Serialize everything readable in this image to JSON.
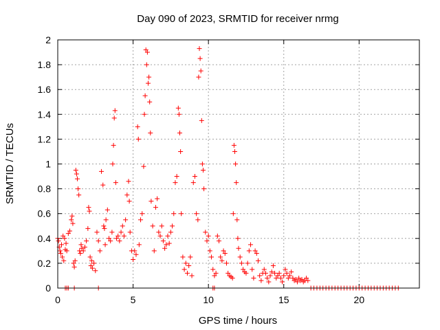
{
  "chart_data": {
    "type": "scatter",
    "title": "Day 090 of 2023, SRMTID for receiver nrmg",
    "xlabel": "GPS time / hours",
    "ylabel": "SRMTID / TECUs",
    "xlim": [
      0,
      24
    ],
    "ylim": [
      0,
      2
    ],
    "xticks": [
      0,
      5,
      10,
      15,
      20
    ],
    "xtick_labels": [
      "0",
      "5",
      "10",
      "15",
      "20"
    ],
    "yticks": [
      0,
      0.2,
      0.4,
      0.6,
      0.8,
      1,
      1.2,
      1.4,
      1.6,
      1.8,
      2
    ],
    "ytick_labels": [
      "0",
      "0.2",
      "0.4",
      "0.6",
      "0.8",
      "1",
      "1.2",
      "1.4",
      "1.6",
      "1.8",
      "2"
    ],
    "grid": true,
    "marker": "+",
    "marker_color": "#ff0000",
    "series": [
      {
        "name": "SRMTID",
        "points": [
          [
            0.0,
            0.4
          ],
          [
            0.05,
            0.38
          ],
          [
            0.1,
            0.33
          ],
          [
            0.15,
            0.3
          ],
          [
            0.2,
            0.28
          ],
          [
            0.25,
            0.35
          ],
          [
            0.3,
            0.25
          ],
          [
            0.35,
            0.42
          ],
          [
            0.4,
            0.22
          ],
          [
            0.45,
            0.4
          ],
          [
            0.5,
            0.31
          ],
          [
            0.55,
            0.36
          ],
          [
            0.6,
            0.3
          ],
          [
            0.7,
            0.44
          ],
          [
            0.8,
            0.46
          ],
          [
            0.9,
            0.55
          ],
          [
            0.95,
            0.58
          ],
          [
            1.0,
            0.52
          ],
          [
            1.05,
            0.2
          ],
          [
            1.1,
            0.17
          ],
          [
            1.15,
            0.22
          ],
          [
            1.2,
            0.95
          ],
          [
            1.25,
            0.92
          ],
          [
            1.3,
            0.88
          ],
          [
            1.35,
            0.8
          ],
          [
            1.4,
            0.75
          ],
          [
            1.45,
            0.3
          ],
          [
            1.5,
            0.28
          ],
          [
            1.55,
            0.35
          ],
          [
            1.6,
            0.32
          ],
          [
            1.7,
            0.3
          ],
          [
            1.8,
            0.33
          ],
          [
            1.9,
            0.38
          ],
          [
            2.0,
            0.48
          ],
          [
            2.05,
            0.65
          ],
          [
            2.1,
            0.62
          ],
          [
            2.15,
            0.25
          ],
          [
            2.2,
            0.18
          ],
          [
            2.25,
            0.22
          ],
          [
            2.3,
            0.16
          ],
          [
            2.4,
            0.2
          ],
          [
            2.5,
            0.14
          ],
          [
            2.6,
            0.45
          ],
          [
            2.7,
            0.38
          ],
          [
            2.8,
            0.3
          ],
          [
            2.9,
            0.94
          ],
          [
            3.0,
            0.83
          ],
          [
            3.05,
            0.5
          ],
          [
            3.1,
            0.48
          ],
          [
            3.15,
            0.35
          ],
          [
            3.2,
            0.55
          ],
          [
            3.3,
            0.63
          ],
          [
            3.4,
            0.4
          ],
          [
            3.5,
            0.38
          ],
          [
            3.6,
            0.45
          ],
          [
            3.65,
            1.0
          ],
          [
            3.7,
            1.15
          ],
          [
            3.75,
            1.37
          ],
          [
            3.8,
            1.43
          ],
          [
            3.85,
            0.85
          ],
          [
            3.9,
            0.4
          ],
          [
            4.0,
            0.42
          ],
          [
            4.1,
            0.38
          ],
          [
            4.2,
            0.45
          ],
          [
            4.3,
            0.5
          ],
          [
            4.4,
            0.42
          ],
          [
            4.5,
            0.55
          ],
          [
            4.6,
            0.75
          ],
          [
            4.7,
            0.86
          ],
          [
            4.75,
            0.7
          ],
          [
            4.8,
            0.45
          ],
          [
            4.9,
            0.3
          ],
          [
            5.0,
            0.23
          ],
          [
            5.1,
            0.3
          ],
          [
            5.2,
            0.27
          ],
          [
            5.3,
            1.3
          ],
          [
            5.35,
            1.2
          ],
          [
            5.4,
            0.35
          ],
          [
            5.5,
            0.55
          ],
          [
            5.6,
            0.6
          ],
          [
            5.7,
            0.98
          ],
          [
            5.75,
            1.4
          ],
          [
            5.8,
            1.55
          ],
          [
            5.85,
            1.92
          ],
          [
            5.9,
            1.8
          ],
          [
            5.95,
            1.9
          ],
          [
            6.0,
            1.65
          ],
          [
            6.05,
            1.7
          ],
          [
            6.1,
            1.5
          ],
          [
            6.15,
            1.25
          ],
          [
            6.2,
            0.7
          ],
          [
            6.3,
            0.5
          ],
          [
            6.4,
            0.3
          ],
          [
            6.5,
            0.65
          ],
          [
            6.6,
            0.72
          ],
          [
            6.7,
            0.45
          ],
          [
            6.8,
            0.42
          ],
          [
            6.9,
            0.5
          ],
          [
            7.0,
            0.38
          ],
          [
            7.1,
            0.32
          ],
          [
            7.2,
            0.35
          ],
          [
            7.3,
            0.42
          ],
          [
            7.4,
            0.36
          ],
          [
            7.5,
            0.45
          ],
          [
            7.6,
            0.5
          ],
          [
            7.7,
            0.6
          ],
          [
            7.8,
            0.85
          ],
          [
            7.9,
            0.9
          ],
          [
            8.0,
            1.45
          ],
          [
            8.05,
            1.4
          ],
          [
            8.1,
            1.25
          ],
          [
            8.15,
            1.1
          ],
          [
            8.2,
            0.6
          ],
          [
            8.3,
            0.25
          ],
          [
            8.4,
            0.15
          ],
          [
            8.5,
            0.2
          ],
          [
            8.6,
            0.12
          ],
          [
            8.7,
            0.18
          ],
          [
            8.8,
            0.25
          ],
          [
            8.9,
            0.1
          ],
          [
            9.0,
            0.85
          ],
          [
            9.1,
            0.9
          ],
          [
            9.2,
            0.6
          ],
          [
            9.3,
            0.55
          ],
          [
            9.35,
            1.7
          ],
          [
            9.4,
            1.93
          ],
          [
            9.45,
            1.85
          ],
          [
            9.5,
            1.75
          ],
          [
            9.55,
            1.35
          ],
          [
            9.6,
            1.0
          ],
          [
            9.65,
            0.95
          ],
          [
            9.7,
            0.8
          ],
          [
            9.8,
            0.45
          ],
          [
            9.9,
            0.38
          ],
          [
            10.0,
            0.42
          ],
          [
            10.1,
            0.3
          ],
          [
            10.2,
            0.25
          ],
          [
            10.3,
            0.15
          ],
          [
            10.4,
            0.1
          ],
          [
            10.5,
            0.12
          ],
          [
            10.6,
            0.42
          ],
          [
            10.7,
            0.38
          ],
          [
            10.8,
            0.25
          ],
          [
            10.9,
            0.22
          ],
          [
            11.0,
            0.3
          ],
          [
            11.1,
            0.28
          ],
          [
            11.2,
            0.2
          ],
          [
            11.3,
            0.12
          ],
          [
            11.4,
            0.1
          ],
          [
            11.5,
            0.09
          ],
          [
            11.6,
            0.08
          ],
          [
            11.65,
            0.6
          ],
          [
            11.7,
            1.15
          ],
          [
            11.75,
            1.1
          ],
          [
            11.8,
            1.0
          ],
          [
            11.85,
            0.85
          ],
          [
            11.9,
            0.55
          ],
          [
            11.95,
            0.4
          ],
          [
            12.0,
            0.32
          ],
          [
            12.1,
            0.25
          ],
          [
            12.2,
            0.2
          ],
          [
            12.3,
            0.15
          ],
          [
            12.4,
            0.13
          ],
          [
            12.5,
            0.12
          ],
          [
            12.6,
            0.2
          ],
          [
            12.7,
            0.3
          ],
          [
            12.8,
            0.35
          ],
          [
            12.9,
            0.15
          ],
          [
            13.0,
            0.08
          ],
          [
            13.1,
            0.3
          ],
          [
            13.2,
            0.28
          ],
          [
            13.3,
            0.22
          ],
          [
            13.4,
            0.1
          ],
          [
            13.5,
            0.06
          ],
          [
            13.6,
            0.12
          ],
          [
            13.7,
            0.15
          ],
          [
            13.8,
            0.12
          ],
          [
            13.9,
            0.08
          ],
          [
            14.0,
            0.05
          ],
          [
            14.1,
            0.1
          ],
          [
            14.2,
            0.13
          ],
          [
            14.3,
            0.18
          ],
          [
            14.4,
            0.12
          ],
          [
            14.5,
            0.08
          ],
          [
            14.6,
            0.1
          ],
          [
            14.7,
            0.12
          ],
          [
            14.8,
            0.08
          ],
          [
            14.9,
            0.05
          ],
          [
            15.0,
            0.1
          ],
          [
            15.1,
            0.15
          ],
          [
            15.2,
            0.12
          ],
          [
            15.3,
            0.08
          ],
          [
            15.4,
            0.1
          ],
          [
            15.5,
            0.13
          ],
          [
            15.6,
            0.08
          ],
          [
            15.7,
            0.06
          ],
          [
            15.8,
            0.07
          ],
          [
            15.9,
            0.05
          ],
          [
            16.0,
            0.08
          ],
          [
            16.1,
            0.06
          ],
          [
            16.2,
            0.07
          ],
          [
            16.3,
            0.05
          ],
          [
            16.4,
            0.06
          ],
          [
            16.5,
            0.08
          ],
          [
            16.6,
            0.06
          ],
          [
            0.5,
            0.0
          ],
          [
            0.6,
            0.0
          ],
          [
            0.7,
            0.0
          ],
          [
            1.1,
            0.0
          ],
          [
            2.7,
            0.0
          ],
          [
            10.3,
            0.0
          ],
          [
            10.4,
            0.0
          ],
          [
            16.8,
            0.0
          ],
          [
            17.0,
            0.0
          ],
          [
            17.2,
            0.0
          ],
          [
            17.4,
            0.0
          ],
          [
            17.6,
            0.0
          ],
          [
            17.8,
            0.0
          ],
          [
            18.0,
            0.0
          ],
          [
            18.2,
            0.0
          ],
          [
            18.4,
            0.0
          ],
          [
            18.6,
            0.0
          ],
          [
            18.8,
            0.0
          ],
          [
            19.0,
            0.0
          ],
          [
            19.2,
            0.0
          ],
          [
            19.4,
            0.0
          ],
          [
            19.6,
            0.0
          ],
          [
            19.8,
            0.0
          ],
          [
            20.0,
            0.0
          ],
          [
            20.2,
            0.0
          ],
          [
            20.4,
            0.0
          ],
          [
            20.6,
            0.0
          ],
          [
            20.8,
            0.0
          ],
          [
            21.0,
            0.0
          ],
          [
            21.2,
            0.0
          ],
          [
            21.4,
            0.0
          ],
          [
            21.6,
            0.0
          ],
          [
            21.8,
            0.0
          ],
          [
            22.0,
            0.0
          ],
          [
            22.2,
            0.0
          ],
          [
            22.4,
            0.0
          ],
          [
            22.6,
            0.0
          ]
        ]
      }
    ]
  }
}
